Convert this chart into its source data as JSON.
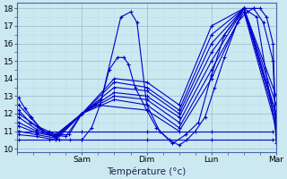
{
  "xlabel": "Température (°c)",
  "bg_color": "#cce8f0",
  "grid_color_major": "#99bbcc",
  "grid_color_minor": "#bbdde8",
  "line_color": "#0000cc",
  "xmin": 0,
  "xmax": 4.0,
  "ymin": 9.8,
  "ymax": 18.3,
  "yticks": [
    10,
    11,
    12,
    13,
    14,
    15,
    16,
    17,
    18
  ],
  "xtick_positions": [
    1.0,
    2.0,
    3.0,
    4.0
  ],
  "xtick_labels": [
    "Sam",
    "Dim",
    "Lun",
    "Mar"
  ],
  "series": [
    [
      0.02,
      12.9,
      0.12,
      12.3,
      0.22,
      11.8,
      0.35,
      11.2,
      0.5,
      10.8,
      0.65,
      10.5,
      0.82,
      10.5,
      1.0,
      10.5,
      1.15,
      11.2,
      1.28,
      12.5,
      1.42,
      14.5,
      1.55,
      15.2,
      1.65,
      15.2,
      1.72,
      14.8,
      1.82,
      13.5,
      2.0,
      12.2,
      2.15,
      11.2,
      2.35,
      10.5,
      2.5,
      10.2,
      2.62,
      10.5,
      2.75,
      11.0,
      2.9,
      11.8,
      3.05,
      13.5,
      3.2,
      15.2,
      3.4,
      17.2,
      3.55,
      17.8,
      3.65,
      18.0,
      3.75,
      18.0,
      3.85,
      17.5,
      3.95,
      16.0,
      4.0,
      10.3
    ],
    [
      0.02,
      12.5,
      0.2,
      11.8,
      0.4,
      11.0,
      0.6,
      10.8,
      0.8,
      10.8,
      1.0,
      12.0,
      1.3,
      12.8,
      1.6,
      17.5,
      1.75,
      17.8,
      1.85,
      17.2,
      2.0,
      12.5,
      2.2,
      11.0,
      2.4,
      10.3,
      2.6,
      10.8,
      2.8,
      11.5,
      3.0,
      14.2,
      3.2,
      16.5,
      3.5,
      18.0,
      3.65,
      18.0,
      3.8,
      17.2,
      3.95,
      15.0,
      4.0,
      10.5
    ],
    [
      0.02,
      12.2,
      0.2,
      11.5,
      0.5,
      10.8,
      0.75,
      10.7,
      1.0,
      12.0,
      1.2,
      12.5,
      2.0,
      12.2,
      2.5,
      11.0,
      3.0,
      14.0,
      3.5,
      18.0,
      3.7,
      17.5,
      4.0,
      10.8
    ],
    [
      0.02,
      12.0,
      0.3,
      11.3,
      0.6,
      10.8,
      1.0,
      12.0,
      1.5,
      12.8,
      2.0,
      12.5,
      2.5,
      11.2,
      3.0,
      14.5,
      3.5,
      17.8,
      4.0,
      11.2
    ],
    [
      0.02,
      11.8,
      0.3,
      11.1,
      0.6,
      10.8,
      1.0,
      12.0,
      1.5,
      13.0,
      2.0,
      12.8,
      2.5,
      11.5,
      3.0,
      15.0,
      3.5,
      18.0,
      4.0,
      11.5
    ],
    [
      0.02,
      11.5,
      0.3,
      11.0,
      0.6,
      10.7,
      1.0,
      12.0,
      1.5,
      13.2,
      2.0,
      13.0,
      2.5,
      11.8,
      3.0,
      15.5,
      3.5,
      18.0,
      4.0,
      11.8
    ],
    [
      0.02,
      11.3,
      0.3,
      10.9,
      0.6,
      10.7,
      1.0,
      12.0,
      1.5,
      13.5,
      2.0,
      13.3,
      2.5,
      12.0,
      3.0,
      16.0,
      3.5,
      18.0,
      4.0,
      12.0
    ],
    [
      0.02,
      11.0,
      0.3,
      10.8,
      0.6,
      10.6,
      1.0,
      12.0,
      1.5,
      13.8,
      2.0,
      13.5,
      2.5,
      12.2,
      3.0,
      16.5,
      3.5,
      18.0,
      4.0,
      12.5
    ],
    [
      0.02,
      10.8,
      0.3,
      10.7,
      0.6,
      10.5,
      1.0,
      12.0,
      1.5,
      14.0,
      2.0,
      13.8,
      2.5,
      12.5,
      3.0,
      17.0,
      3.5,
      18.0,
      4.0,
      13.0
    ],
    [
      0.02,
      10.5,
      0.5,
      10.5,
      1.0,
      10.5,
      2.0,
      10.5,
      3.0,
      10.5,
      3.95,
      10.5
    ],
    [
      0.02,
      11.0,
      0.5,
      11.0,
      1.0,
      11.0,
      2.0,
      11.0,
      3.0,
      11.0,
      3.95,
      11.0
    ]
  ]
}
